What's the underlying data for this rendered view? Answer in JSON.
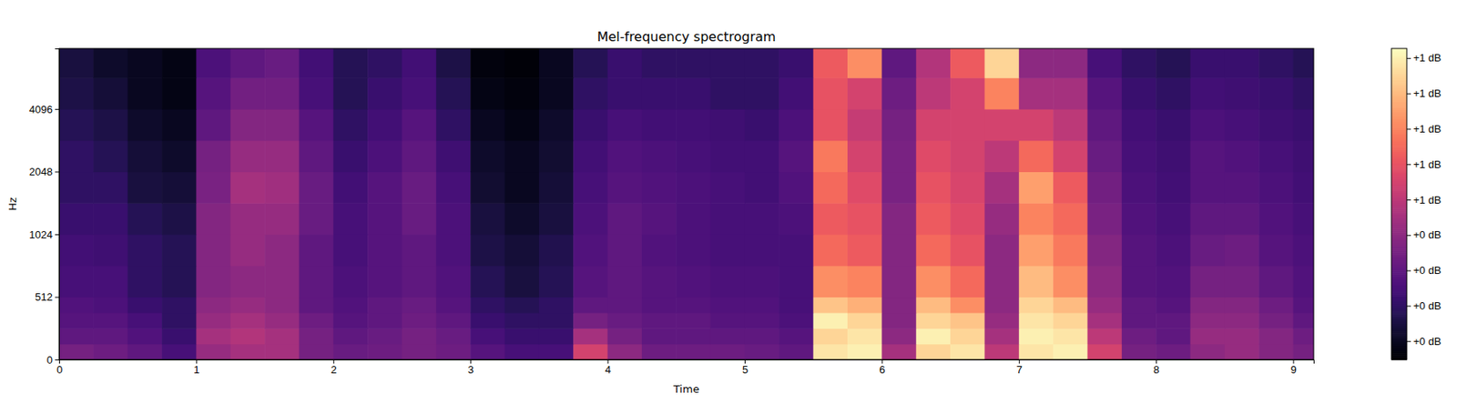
{
  "chart_data": {
    "type": "heatmap",
    "title": "Mel-frequency spectrogram",
    "x_label": "Time",
    "y_label": "Hz",
    "color": "magma",
    "xlim": [
      0,
      9.15
    ],
    "xticks": [
      0,
      1,
      2,
      3,
      4,
      5,
      6,
      7,
      8,
      9
    ],
    "ylim": [
      0,
      8000
    ],
    "yticks": [
      0,
      512,
      1024,
      2048,
      4096
    ],
    "log": "y",
    "x": [
      0,
      0.25,
      0.5,
      0.75,
      1,
      1.25,
      1.5,
      1.75,
      2,
      2.25,
      2.5,
      2.75,
      3,
      3.25,
      3.5,
      3.75,
      4,
      4.25,
      4.5,
      4.75,
      5,
      5.25,
      5.5,
      5.75,
      6,
      6.25,
      6.5,
      6.75,
      7,
      7.25,
      7.5,
      7.75,
      8,
      8.25,
      8.5,
      8.75,
      9
    ],
    "y": [
      0,
      128,
      256,
      384,
      512,
      724,
      1024,
      1448,
      2048,
      2896,
      4096,
      5793
    ],
    "z": [
      [
        0.35,
        0.33,
        0.3,
        0.25,
        0.42,
        0.45,
        0.45,
        0.35,
        0.32,
        0.33,
        0.35,
        0.33,
        0.28,
        0.25,
        0.25,
        0.55,
        0.4,
        0.33,
        0.33,
        0.33,
        0.32,
        0.3,
        0.88,
        0.9,
        0.45,
        0.85,
        0.88,
        0.5,
        0.88,
        0.9,
        0.55,
        0.35,
        0.33,
        0.4,
        0.42,
        0.38,
        0.35
      ],
      [
        0.3,
        0.3,
        0.27,
        0.22,
        0.45,
        0.48,
        0.45,
        0.35,
        0.3,
        0.32,
        0.35,
        0.32,
        0.25,
        0.22,
        0.22,
        0.45,
        0.35,
        0.3,
        0.3,
        0.3,
        0.3,
        0.28,
        0.85,
        0.88,
        0.4,
        0.9,
        0.85,
        0.45,
        0.9,
        0.88,
        0.5,
        0.33,
        0.3,
        0.42,
        0.42,
        0.38,
        0.33
      ],
      [
        0.28,
        0.28,
        0.25,
        0.2,
        0.42,
        0.45,
        0.42,
        0.33,
        0.28,
        0.3,
        0.33,
        0.3,
        0.22,
        0.2,
        0.2,
        0.35,
        0.32,
        0.3,
        0.3,
        0.28,
        0.28,
        0.26,
        0.9,
        0.85,
        0.38,
        0.85,
        0.82,
        0.42,
        0.88,
        0.85,
        0.45,
        0.3,
        0.3,
        0.4,
        0.4,
        0.35,
        0.3
      ],
      [
        0.27,
        0.26,
        0.22,
        0.2,
        0.4,
        0.42,
        0.4,
        0.3,
        0.27,
        0.3,
        0.32,
        0.28,
        0.2,
        0.18,
        0.2,
        0.3,
        0.3,
        0.28,
        0.28,
        0.27,
        0.27,
        0.25,
        0.82,
        0.78,
        0.38,
        0.8,
        0.72,
        0.4,
        0.85,
        0.8,
        0.42,
        0.3,
        0.28,
        0.38,
        0.38,
        0.33,
        0.28
      ],
      [
        0.25,
        0.25,
        0.2,
        0.18,
        0.38,
        0.4,
        0.4,
        0.3,
        0.26,
        0.28,
        0.3,
        0.27,
        0.18,
        0.15,
        0.18,
        0.28,
        0.3,
        0.28,
        0.27,
        0.26,
        0.26,
        0.25,
        0.72,
        0.7,
        0.38,
        0.72,
        0.65,
        0.4,
        0.8,
        0.72,
        0.4,
        0.28,
        0.27,
        0.35,
        0.35,
        0.3,
        0.27
      ],
      [
        0.24,
        0.23,
        0.2,
        0.18,
        0.38,
        0.42,
        0.4,
        0.3,
        0.25,
        0.28,
        0.3,
        0.26,
        0.16,
        0.14,
        0.17,
        0.27,
        0.3,
        0.27,
        0.26,
        0.25,
        0.25,
        0.25,
        0.65,
        0.62,
        0.38,
        0.65,
        0.6,
        0.4,
        0.75,
        0.68,
        0.38,
        0.28,
        0.26,
        0.32,
        0.33,
        0.28,
        0.26
      ],
      [
        0.22,
        0.22,
        0.18,
        0.16,
        0.38,
        0.42,
        0.42,
        0.32,
        0.25,
        0.28,
        0.32,
        0.26,
        0.15,
        0.12,
        0.15,
        0.26,
        0.3,
        0.28,
        0.26,
        0.25,
        0.25,
        0.26,
        0.62,
        0.6,
        0.38,
        0.62,
        0.58,
        0.42,
        0.7,
        0.65,
        0.36,
        0.27,
        0.25,
        0.3,
        0.3,
        0.27,
        0.25
      ],
      [
        0.2,
        0.2,
        0.15,
        0.14,
        0.36,
        0.45,
        0.44,
        0.32,
        0.24,
        0.28,
        0.32,
        0.25,
        0.13,
        0.1,
        0.14,
        0.25,
        0.28,
        0.27,
        0.26,
        0.25,
        0.24,
        0.27,
        0.65,
        0.58,
        0.36,
        0.6,
        0.56,
        0.45,
        0.75,
        0.62,
        0.34,
        0.26,
        0.24,
        0.28,
        0.28,
        0.26,
        0.24
      ],
      [
        0.2,
        0.18,
        0.14,
        0.12,
        0.35,
        0.42,
        0.42,
        0.3,
        0.22,
        0.26,
        0.3,
        0.23,
        0.12,
        0.1,
        0.13,
        0.24,
        0.27,
        0.26,
        0.25,
        0.24,
        0.24,
        0.28,
        0.68,
        0.55,
        0.36,
        0.58,
        0.55,
        0.5,
        0.65,
        0.55,
        0.32,
        0.25,
        0.23,
        0.28,
        0.27,
        0.25,
        0.23
      ],
      [
        0.18,
        0.16,
        0.12,
        0.1,
        0.3,
        0.38,
        0.38,
        0.28,
        0.2,
        0.24,
        0.28,
        0.2,
        0.1,
        0.08,
        0.12,
        0.22,
        0.25,
        0.24,
        0.24,
        0.23,
        0.22,
        0.26,
        0.6,
        0.52,
        0.35,
        0.55,
        0.55,
        0.55,
        0.55,
        0.5,
        0.3,
        0.24,
        0.22,
        0.26,
        0.25,
        0.23,
        0.22
      ],
      [
        0.16,
        0.14,
        0.1,
        0.08,
        0.28,
        0.34,
        0.34,
        0.25,
        0.18,
        0.22,
        0.25,
        0.18,
        0.08,
        0.07,
        0.1,
        0.2,
        0.22,
        0.22,
        0.22,
        0.2,
        0.2,
        0.24,
        0.6,
        0.55,
        0.33,
        0.5,
        0.55,
        0.7,
        0.45,
        0.45,
        0.28,
        0.22,
        0.2,
        0.24,
        0.23,
        0.22,
        0.2
      ],
      [
        0.15,
        0.12,
        0.1,
        0.08,
        0.26,
        0.3,
        0.32,
        0.24,
        0.18,
        0.2,
        0.24,
        0.16,
        0.07,
        0.06,
        0.1,
        0.18,
        0.22,
        0.2,
        0.2,
        0.2,
        0.2,
        0.22,
        0.62,
        0.72,
        0.3,
        0.48,
        0.62,
        0.85,
        0.4,
        0.4,
        0.25,
        0.2,
        0.18,
        0.22,
        0.22,
        0.2,
        0.18
      ]
    ],
    "colorbar": {
      "range": [
        0.048,
        0.927
      ],
      "ticks": [
        {
          "value": 0.1,
          "label": "+0 dB"
        },
        {
          "value": 0.2,
          "label": "+0 dB"
        },
        {
          "value": 0.3,
          "label": "+0 dB"
        },
        {
          "value": 0.4,
          "label": "+0 dB"
        },
        {
          "value": 0.5,
          "label": "+1 dB"
        },
        {
          "value": 0.6,
          "label": "+1 dB"
        },
        {
          "value": 0.7,
          "label": "+1 dB"
        },
        {
          "value": 0.8,
          "label": "+1 dB"
        },
        {
          "value": 0.9,
          "label": "+1 dB"
        }
      ]
    }
  }
}
